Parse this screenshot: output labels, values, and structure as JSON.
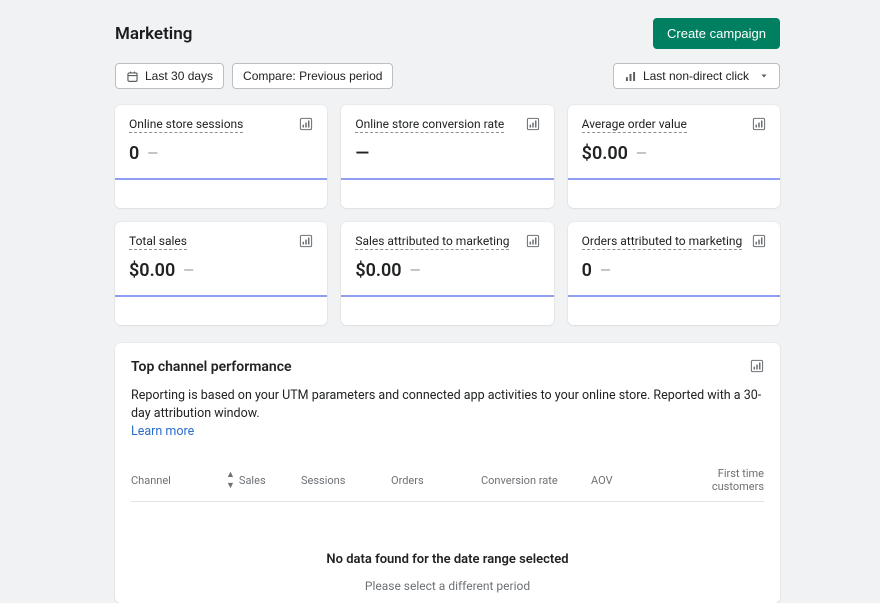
{
  "header": {
    "title": "Marketing",
    "create_button": "Create campaign"
  },
  "controls": {
    "date_range": "Last 30 days",
    "compare": "Compare: Previous period",
    "attribution": "Last non-direct click"
  },
  "metrics": [
    {
      "title": "Online store sessions",
      "value": "0",
      "show_dash": true
    },
    {
      "title": "Online store conversion rate",
      "value": "—",
      "show_dash": false
    },
    {
      "title": "Average order value",
      "value": "$0.00",
      "show_dash": true
    },
    {
      "title": "Total sales",
      "value": "$0.00",
      "show_dash": true
    },
    {
      "title": "Sales attributed to marketing",
      "value": "$0.00",
      "show_dash": true
    },
    {
      "title": "Orders attributed to marketing",
      "value": "0",
      "show_dash": true
    }
  ],
  "panel": {
    "title": "Top channel performance",
    "description": "Reporting is based on your UTM parameters and connected app activities to your online store. Reported with a 30-day attribution window.",
    "learn_more": "Learn more",
    "columns": {
      "channel": "Channel",
      "sales": "Sales",
      "sessions": "Sessions",
      "orders": "Orders",
      "conversion": "Conversion rate",
      "aov": "AOV",
      "first_time": "First time customers"
    },
    "empty_title": "No data found for the date range selected",
    "empty_sub": "Please select a different period"
  },
  "colors": {
    "primary": "#008060",
    "accent_line": "#8e9ef0",
    "link": "#2c6ecb",
    "background": "#f1f2f4"
  }
}
